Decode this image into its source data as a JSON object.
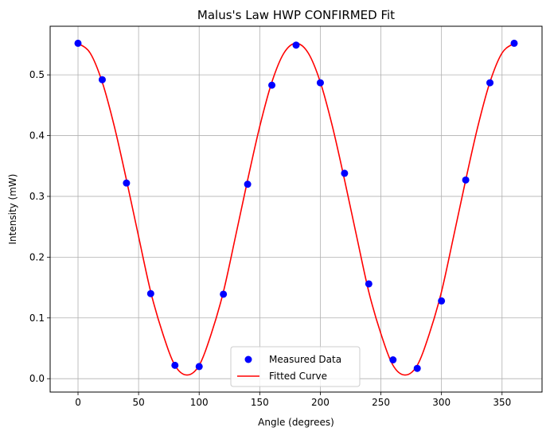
{
  "chart_data": {
    "type": "scatter",
    "title": "Malus's Law HWP CONFIRMED Fit",
    "xlabel": "Angle (degrees)",
    "ylabel": "Intensity (mW)",
    "xlim": [
      -23,
      383
    ],
    "ylim": [
      -0.022,
      0.58
    ],
    "xticks": [
      0,
      50,
      100,
      150,
      200,
      250,
      300,
      350
    ],
    "yticks": [
      0.0,
      0.1,
      0.2,
      0.3,
      0.4,
      0.5
    ],
    "xtick_labels": [
      "0",
      "50",
      "100",
      "150",
      "200",
      "250",
      "300",
      "350"
    ],
    "ytick_labels": [
      "0.0",
      "0.1",
      "0.2",
      "0.3",
      "0.4",
      "0.5"
    ],
    "grid": true,
    "legend": {
      "placement": "lower center",
      "entries": [
        "Measured Data",
        "Fitted Curve"
      ]
    },
    "series": [
      {
        "name": "Measured Data",
        "kind": "scatter",
        "color": "#0000ff",
        "x": [
          0,
          20,
          40,
          60,
          80,
          100,
          120,
          140,
          160,
          180,
          200,
          220,
          240,
          260,
          280,
          300,
          320,
          340,
          360
        ],
        "y": [
          0.552,
          0.492,
          0.322,
          0.14,
          0.022,
          0.02,
          0.139,
          0.32,
          0.483,
          0.549,
          0.487,
          0.338,
          0.156,
          0.031,
          0.017,
          0.128,
          0.327,
          0.487,
          0.552
        ]
      },
      {
        "name": "Fitted Curve",
        "kind": "line",
        "color": "#ff0000",
        "x": [
          0,
          10,
          20,
          30,
          40,
          50,
          60,
          70,
          80,
          90,
          100,
          110,
          120,
          130,
          140,
          150,
          160,
          170,
          180,
          190,
          200,
          210,
          220,
          230,
          240,
          250,
          260,
          270,
          280,
          290,
          300,
          310,
          320,
          330,
          340,
          350,
          360
        ],
        "y": [
          0.552,
          0.536,
          0.488,
          0.415,
          0.327,
          0.234,
          0.143,
          0.074,
          0.022,
          0.006,
          0.022,
          0.074,
          0.143,
          0.234,
          0.327,
          0.415,
          0.488,
          0.536,
          0.552,
          0.536,
          0.488,
          0.415,
          0.327,
          0.234,
          0.143,
          0.074,
          0.022,
          0.006,
          0.022,
          0.074,
          0.143,
          0.234,
          0.327,
          0.415,
          0.488,
          0.536,
          0.552
        ]
      }
    ]
  }
}
